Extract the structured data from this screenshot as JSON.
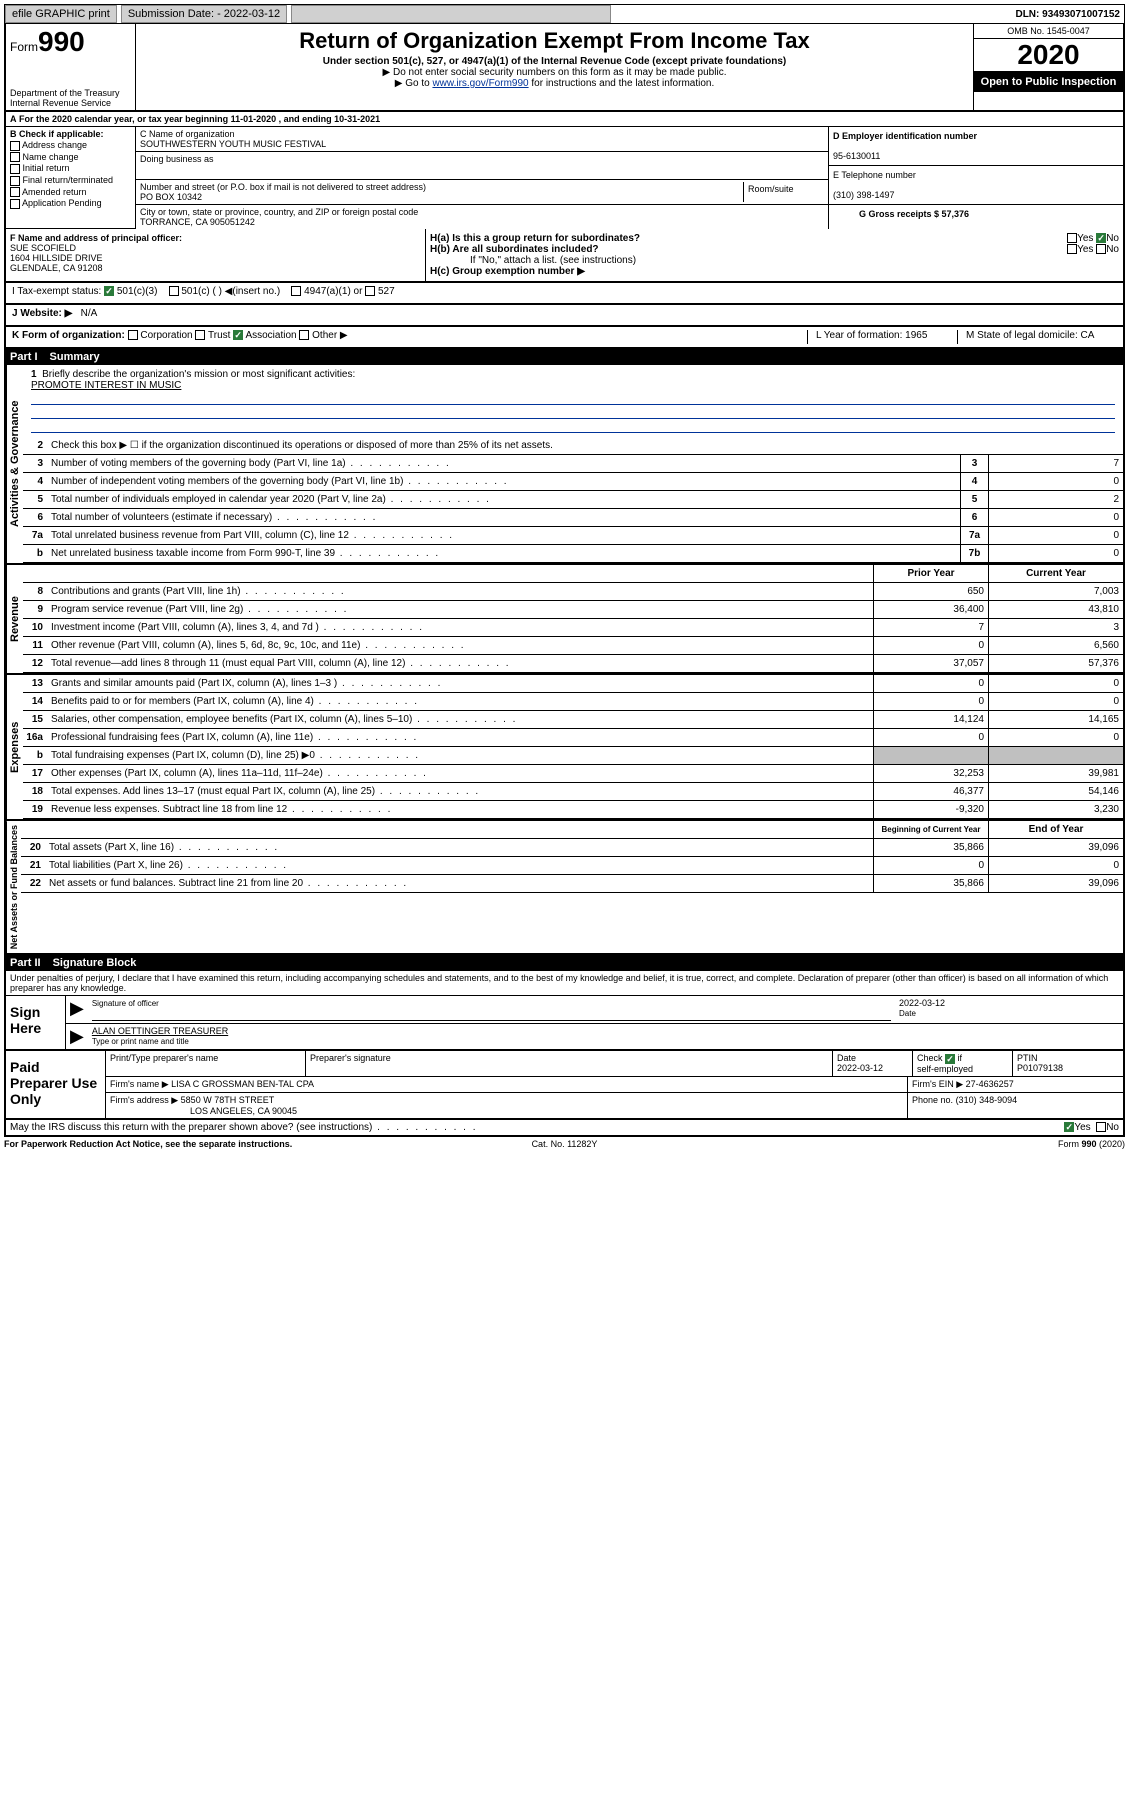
{
  "topbar": {
    "efile": "efile GRAPHIC print",
    "subdate_label": "Submission Date: - 2022-03-12",
    "dln": "DLN: 93493071007152"
  },
  "header": {
    "form_label": "Form",
    "form_num": "990",
    "dept": "Department of the Treasury",
    "irs": "Internal Revenue Service",
    "title": "Return of Organization Exempt From Income Tax",
    "sub1": "Under section 501(c), 527, or 4947(a)(1) of the Internal Revenue Code (except private foundations)",
    "sub2": "▶ Do not enter social security numbers on this form as it may be made public.",
    "sub3_pre": "▶ Go to ",
    "sub3_link": "www.irs.gov/Form990",
    "sub3_post": " for instructions and the latest information.",
    "omb": "OMB No. 1545-0047",
    "year": "2020",
    "open": "Open to Public Inspection"
  },
  "secA": "For the 2020 calendar year, or tax year beginning 11-01-2020     , and ending 10-31-2021",
  "bcheck": {
    "title": "B Check if applicable:",
    "opts": [
      "Address change",
      "Name change",
      "Initial return",
      "Final return/terminated",
      "Amended return",
      "Application Pending"
    ]
  },
  "org": {
    "c_label": "C Name of organization",
    "name": "SOUTHWESTERN YOUTH MUSIC FESTIVAL",
    "dba_label": "Doing business as",
    "addr_label": "Number and street (or P.O. box if mail is not delivered to street address)",
    "room_label": "Room/suite",
    "addr": "PO BOX 10342",
    "city_label": "City or town, state or province, country, and ZIP or foreign postal code",
    "city": "TORRANCE, CA  905051242"
  },
  "dbox": {
    "d_label": "D Employer identification number",
    "d_val": "95-6130011",
    "e_label": "E Telephone number",
    "e_val": "(310) 398-1497",
    "g_label": "G Gross receipts $ 57,376"
  },
  "fsec": {
    "f_label": "F  Name and address of principal officer:",
    "name": "SUE SCOFIELD",
    "addr1": "1604 HILLSIDE DRIVE",
    "addr2": "GLENDALE, CA  91208",
    "ha": "H(a)  Is this a group return for subordinates?",
    "hb": "H(b)  Are all subordinates included?",
    "hnote": "If \"No,\" attach a list. (see instructions)",
    "hc": "H(c)  Group exemption number ▶"
  },
  "status": {
    "label": "I   Tax-exempt status:",
    "opt1": "501(c)(3)",
    "opt2": "501(c) (  ) ◀(insert no.)",
    "opt3": "4947(a)(1) or",
    "opt4": "527"
  },
  "website": {
    "label": "J   Website: ▶",
    "val": "N/A"
  },
  "korg": {
    "label": "K Form of organization:",
    "o1": "Corporation",
    "o2": "Trust",
    "o3": "Association",
    "o4": "Other ▶",
    "l": "L Year of formation: 1965",
    "m": "M State of legal domicile: CA"
  },
  "part1": {
    "hdr": "Part I",
    "title": "Summary",
    "q1": "Briefly describe the organization's mission or most significant activities:",
    "mission": "PROMOTE INTEREST IN MUSIC",
    "q2": "Check this box ▶ ☐  if the organization discontinued its operations or disposed of more than 25% of its net assets.",
    "rows_ag": [
      {
        "n": "3",
        "t": "Number of voting members of the governing body (Part VI, line 1a)",
        "b": "3",
        "v": "7"
      },
      {
        "n": "4",
        "t": "Number of independent voting members of the governing body (Part VI, line 1b)",
        "b": "4",
        "v": "0"
      },
      {
        "n": "5",
        "t": "Total number of individuals employed in calendar year 2020 (Part V, line 2a)",
        "b": "5",
        "v": "2"
      },
      {
        "n": "6",
        "t": "Total number of volunteers (estimate if necessary)",
        "b": "6",
        "v": "0"
      },
      {
        "n": "7a",
        "t": "Total unrelated business revenue from Part VIII, column (C), line 12",
        "b": "7a",
        "v": "0"
      },
      {
        "n": "b",
        "t": "Net unrelated business taxable income from Form 990-T, line 39",
        "b": "7b",
        "v": "0"
      }
    ],
    "col_prior": "Prior Year",
    "col_curr": "Current Year",
    "rev": [
      {
        "n": "8",
        "t": "Contributions and grants (Part VIII, line 1h)",
        "p": "650",
        "c": "7,003"
      },
      {
        "n": "9",
        "t": "Program service revenue (Part VIII, line 2g)",
        "p": "36,400",
        "c": "43,810"
      },
      {
        "n": "10",
        "t": "Investment income (Part VIII, column (A), lines 3, 4, and 7d )",
        "p": "7",
        "c": "3"
      },
      {
        "n": "11",
        "t": "Other revenue (Part VIII, column (A), lines 5, 6d, 8c, 9c, 10c, and 11e)",
        "p": "0",
        "c": "6,560"
      },
      {
        "n": "12",
        "t": "Total revenue—add lines 8 through 11 (must equal Part VIII, column (A), line 12)",
        "p": "37,057",
        "c": "57,376"
      }
    ],
    "exp": [
      {
        "n": "13",
        "t": "Grants and similar amounts paid (Part IX, column (A), lines 1–3 )",
        "p": "0",
        "c": "0"
      },
      {
        "n": "14",
        "t": "Benefits paid to or for members (Part IX, column (A), line 4)",
        "p": "0",
        "c": "0"
      },
      {
        "n": "15",
        "t": "Salaries, other compensation, employee benefits (Part IX, column (A), lines 5–10)",
        "p": "14,124",
        "c": "14,165"
      },
      {
        "n": "16a",
        "t": "Professional fundraising fees (Part IX, column (A), line 11e)",
        "p": "0",
        "c": "0"
      },
      {
        "n": "b",
        "t": "Total fundraising expenses (Part IX, column (D), line 25) ▶0",
        "p": "",
        "c": "",
        "shade": true
      },
      {
        "n": "17",
        "t": "Other expenses (Part IX, column (A), lines 11a–11d, 11f–24e)",
        "p": "32,253",
        "c": "39,981"
      },
      {
        "n": "18",
        "t": "Total expenses. Add lines 13–17 (must equal Part IX, column (A), line 25)",
        "p": "46,377",
        "c": "54,146"
      },
      {
        "n": "19",
        "t": "Revenue less expenses. Subtract line 18 from line 12",
        "p": "-9,320",
        "c": "3,230"
      }
    ],
    "col_beg": "Beginning of Current Year",
    "col_end": "End of Year",
    "net": [
      {
        "n": "20",
        "t": "Total assets (Part X, line 16)",
        "p": "35,866",
        "c": "39,096"
      },
      {
        "n": "21",
        "t": "Total liabilities (Part X, line 26)",
        "p": "0",
        "c": "0"
      },
      {
        "n": "22",
        "t": "Net assets or fund balances. Subtract line 21 from line 20",
        "p": "35,866",
        "c": "39,096"
      }
    ],
    "side_ag": "Activities & Governance",
    "side_rev": "Revenue",
    "side_exp": "Expenses",
    "side_net": "Net Assets or Fund Balances"
  },
  "part2": {
    "hdr": "Part II",
    "title": "Signature Block",
    "decl": "Under penalties of perjury, I declare that I have examined this return, including accompanying schedules and statements, and to the best of my knowledge and belief, it is true, correct, and complete. Declaration of preparer (other than officer) is based on all information of which preparer has any knowledge.",
    "sign_label": "Sign Here",
    "sig_officer": "Signature of officer",
    "date_label": "Date",
    "sig_date": "2022-03-12",
    "name_title": "ALAN OETTINGER  TREASURER",
    "type_label": "Type or print name and title"
  },
  "paid": {
    "label": "Paid Preparer Use Only",
    "h_name": "Print/Type preparer's name",
    "h_sig": "Preparer's signature",
    "h_date": "Date",
    "date": "2022-03-12",
    "h_check": "Check ☑ if self-employed",
    "h_ptin": "PTIN",
    "ptin": "P01079138",
    "firm_label": "Firm's name    ▶",
    "firm": "LISA C GROSSMAN BEN-TAL CPA",
    "ein_label": "Firm's EIN ▶",
    "ein": "27-4636257",
    "addr_label": "Firm's address ▶",
    "addr1": "5850 W 78TH STREET",
    "addr2": "LOS ANGELES, CA  90045",
    "phone_label": "Phone no.",
    "phone": "(310) 348-9094",
    "discuss": "May the IRS discuss this return with the preparer shown above? (see instructions)"
  },
  "footer": {
    "left": "For Paperwork Reduction Act Notice, see the separate instructions.",
    "mid": "Cat. No. 11282Y",
    "right": "Form 990 (2020)"
  }
}
